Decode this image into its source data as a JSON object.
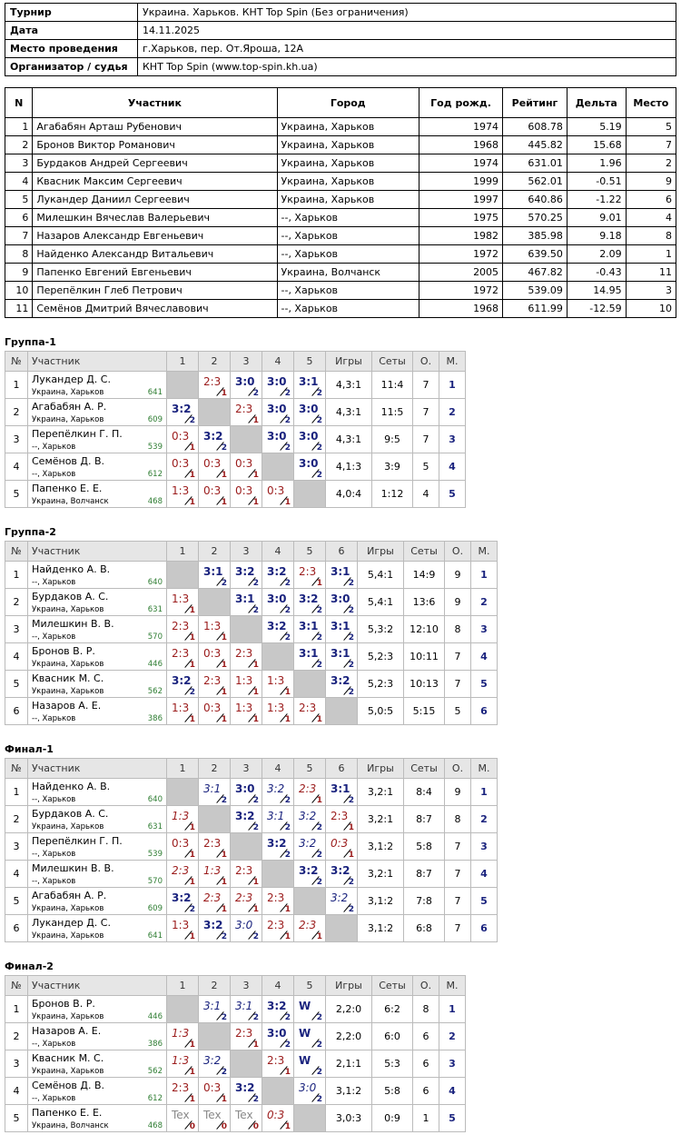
{
  "info": {
    "rows": [
      {
        "label": "Турнир",
        "value": "Украина. Харьков. КНТ Top Spin (Без ограничения)"
      },
      {
        "label": "Дата",
        "value": "14.11.2025"
      },
      {
        "label": "Место проведения",
        "value": "г.Харьков, пер. От.Яроша, 12А"
      },
      {
        "label": "Организатор / судья",
        "value": "КНТ Top Spin (www.top-spin.kh.ua)"
      }
    ]
  },
  "participants": {
    "headers": [
      "N",
      "Участник",
      "Город",
      "Год рожд.",
      "Рейтинг",
      "Дельта",
      "Место"
    ],
    "rows": [
      [
        "1",
        "Агабабян Арташ Рубенович",
        "Украина, Харьков",
        "1974",
        "608.78",
        "5.19",
        "5"
      ],
      [
        "2",
        "Бронов Виктор Романович",
        "Украина, Харьков",
        "1968",
        "445.82",
        "15.68",
        "7"
      ],
      [
        "3",
        "Бурдаков Андрей Сергеевич",
        "Украина, Харьков",
        "1974",
        "631.01",
        "1.96",
        "2"
      ],
      [
        "4",
        "Квасник Максим Сергеевич",
        "Украина, Харьков",
        "1999",
        "562.01",
        "-0.51",
        "9"
      ],
      [
        "5",
        "Лукандер Даниил Сергеевич",
        "Украина, Харьков",
        "1997",
        "640.86",
        "-1.22",
        "6"
      ],
      [
        "6",
        "Милешкин Вячеслав Валерьевич",
        "--, Харьков",
        "1975",
        "570.25",
        "9.01",
        "4"
      ],
      [
        "7",
        "Назаров Александр Евгеньевич",
        "--, Харьков",
        "1982",
        "385.98",
        "9.18",
        "8"
      ],
      [
        "8",
        "Найденко Александр Витальевич",
        "--, Харьков",
        "1972",
        "639.50",
        "2.09",
        "1"
      ],
      [
        "9",
        "Папенко Евгений Евгеньевич",
        "Украина, Волчанск",
        "2005",
        "467.82",
        "-0.43",
        "11"
      ],
      [
        "10",
        "Перепёлкин Глеб Петрович",
        "--, Харьков",
        "1972",
        "539.09",
        "14.95",
        "3"
      ],
      [
        "11",
        "Семёнов Дмитрий Вячеславович",
        "--, Харьков",
        "1968",
        "611.99",
        "-12.59",
        "10"
      ]
    ]
  },
  "groups": [
    {
      "title": "Группа-1",
      "headers": [
        "№",
        "Участник",
        "1",
        "2",
        "3",
        "4",
        "5",
        "Игры",
        "Сеты",
        "О.",
        "М."
      ],
      "rows": [
        {
          "n": "1",
          "name": "Лукандер Д. С.",
          "city": "Украина, Харьков",
          "rating": "641",
          "results": [
            null,
            {
              "score": "2:3",
              "pts": 1
            },
            {
              "score": "3:0",
              "pts": 2
            },
            {
              "score": "3:0",
              "pts": 2
            },
            {
              "score": "3:1",
              "pts": 2
            }
          ],
          "games": "4,3:1",
          "sets": "11:4",
          "points": "7",
          "place": "1"
        },
        {
          "n": "2",
          "name": "Агабабян А. Р.",
          "city": "Украина, Харьков",
          "rating": "609",
          "results": [
            {
              "score": "3:2",
              "pts": 2
            },
            null,
            {
              "score": "2:3",
              "pts": 1
            },
            {
              "score": "3:0",
              "pts": 2
            },
            {
              "score": "3:0",
              "pts": 2
            }
          ],
          "games": "4,3:1",
          "sets": "11:5",
          "points": "7",
          "place": "2"
        },
        {
          "n": "3",
          "name": "Перепёлкин Г. П.",
          "city": "--, Харьков",
          "rating": "539",
          "results": [
            {
              "score": "0:3",
              "pts": 1
            },
            {
              "score": "3:2",
              "pts": 2
            },
            null,
            {
              "score": "3:0",
              "pts": 2
            },
            {
              "score": "3:0",
              "pts": 2
            }
          ],
          "games": "4,3:1",
          "sets": "9:5",
          "points": "7",
          "place": "3"
        },
        {
          "n": "4",
          "name": "Семёнов Д. В.",
          "city": "--, Харьков",
          "rating": "612",
          "results": [
            {
              "score": "0:3",
              "pts": 1
            },
            {
              "score": "0:3",
              "pts": 1
            },
            {
              "score": "0:3",
              "pts": 1
            },
            null,
            {
              "score": "3:0",
              "pts": 2
            }
          ],
          "games": "4,1:3",
          "sets": "3:9",
          "points": "5",
          "place": "4"
        },
        {
          "n": "5",
          "name": "Папенко Е. Е.",
          "city": "Украина, Волчанск",
          "rating": "468",
          "results": [
            {
              "score": "1:3",
              "pts": 1
            },
            {
              "score": "0:3",
              "pts": 1
            },
            {
              "score": "0:3",
              "pts": 1
            },
            {
              "score": "0:3",
              "pts": 1
            },
            null
          ],
          "games": "4,0:4",
          "sets": "1:12",
          "points": "4",
          "place": "5"
        }
      ]
    },
    {
      "title": "Группа-2",
      "headers": [
        "№",
        "Участник",
        "1",
        "2",
        "3",
        "4",
        "5",
        "6",
        "Игры",
        "Сеты",
        "О.",
        "М."
      ],
      "rows": [
        {
          "n": "1",
          "name": "Найденко А. В.",
          "city": "--, Харьков",
          "rating": "640",
          "results": [
            null,
            {
              "score": "3:1",
              "pts": 2
            },
            {
              "score": "3:2",
              "pts": 2
            },
            {
              "score": "3:2",
              "pts": 2
            },
            {
              "score": "2:3",
              "pts": 1
            },
            {
              "score": "3:1",
              "pts": 2
            }
          ],
          "games": "5,4:1",
          "sets": "14:9",
          "points": "9",
          "place": "1"
        },
        {
          "n": "2",
          "name": "Бурдаков А. С.",
          "city": "Украина, Харьков",
          "rating": "631",
          "results": [
            {
              "score": "1:3",
              "pts": 1
            },
            null,
            {
              "score": "3:1",
              "pts": 2
            },
            {
              "score": "3:0",
              "pts": 2
            },
            {
              "score": "3:2",
              "pts": 2
            },
            {
              "score": "3:0",
              "pts": 2
            }
          ],
          "games": "5,4:1",
          "sets": "13:6",
          "points": "9",
          "place": "2"
        },
        {
          "n": "3",
          "name": "Милешкин В. В.",
          "city": "--, Харьков",
          "rating": "570",
          "results": [
            {
              "score": "2:3",
              "pts": 1
            },
            {
              "score": "1:3",
              "pts": 1
            },
            null,
            {
              "score": "3:2",
              "pts": 2
            },
            {
              "score": "3:1",
              "pts": 2
            },
            {
              "score": "3:1",
              "pts": 2
            }
          ],
          "games": "5,3:2",
          "sets": "12:10",
          "points": "8",
          "place": "3"
        },
        {
          "n": "4",
          "name": "Бронов В. Р.",
          "city": "Украина, Харьков",
          "rating": "446",
          "results": [
            {
              "score": "2:3",
              "pts": 1
            },
            {
              "score": "0:3",
              "pts": 1
            },
            {
              "score": "2:3",
              "pts": 1
            },
            null,
            {
              "score": "3:1",
              "pts": 2
            },
            {
              "score": "3:1",
              "pts": 2
            }
          ],
          "games": "5,2:3",
          "sets": "10:11",
          "points": "7",
          "place": "4"
        },
        {
          "n": "5",
          "name": "Квасник М. С.",
          "city": "Украина, Харьков",
          "rating": "562",
          "results": [
            {
              "score": "3:2",
              "pts": 2
            },
            {
              "score": "2:3",
              "pts": 1
            },
            {
              "score": "1:3",
              "pts": 1
            },
            {
              "score": "1:3",
              "pts": 1
            },
            null,
            {
              "score": "3:2",
              "pts": 2
            }
          ],
          "games": "5,2:3",
          "sets": "10:13",
          "points": "7",
          "place": "5"
        },
        {
          "n": "6",
          "name": "Назаров А. Е.",
          "city": "--, Харьков",
          "rating": "386",
          "results": [
            {
              "score": "1:3",
              "pts": 1
            },
            {
              "score": "0:3",
              "pts": 1
            },
            {
              "score": "1:3",
              "pts": 1
            },
            {
              "score": "1:3",
              "pts": 1
            },
            {
              "score": "2:3",
              "pts": 1
            },
            null
          ],
          "games": "5,0:5",
          "sets": "5:15",
          "points": "5",
          "place": "6"
        }
      ]
    },
    {
      "title": "Финал-1",
      "headers": [
        "№",
        "Участник",
        "1",
        "2",
        "3",
        "4",
        "5",
        "6",
        "Игры",
        "Сеты",
        "О.",
        "М."
      ],
      "rows": [
        {
          "n": "1",
          "name": "Найденко А. В.",
          "city": "--, Харьков",
          "rating": "640",
          "results": [
            null,
            {
              "score": "3:1",
              "pts": 2,
              "italic": true
            },
            {
              "score": "3:0",
              "pts": 2
            },
            {
              "score": "3:2",
              "pts": 2,
              "italic": true
            },
            {
              "score": "2:3",
              "pts": 1,
              "italic": true
            },
            {
              "score": "3:1",
              "pts": 2
            }
          ],
          "games": "3,2:1",
          "sets": "8:4",
          "points": "9",
          "place": "1"
        },
        {
          "n": "2",
          "name": "Бурдаков А. С.",
          "city": "Украина, Харьков",
          "rating": "631",
          "results": [
            {
              "score": "1:3",
              "pts": 1,
              "italic": true
            },
            null,
            {
              "score": "3:2",
              "pts": 2
            },
            {
              "score": "3:1",
              "pts": 2,
              "italic": true
            },
            {
              "score": "3:2",
              "pts": 2,
              "italic": true
            },
            {
              "score": "2:3",
              "pts": 1
            }
          ],
          "games": "3,2:1",
          "sets": "8:7",
          "points": "8",
          "place": "2"
        },
        {
          "n": "3",
          "name": "Перепёлкин Г. П.",
          "city": "--, Харьков",
          "rating": "539",
          "results": [
            {
              "score": "0:3",
              "pts": 1
            },
            {
              "score": "2:3",
              "pts": 1
            },
            null,
            {
              "score": "3:2",
              "pts": 2
            },
            {
              "score": "3:2",
              "pts": 2,
              "italic": true
            },
            {
              "score": "0:3",
              "pts": 1,
              "italic": true
            }
          ],
          "games": "3,1:2",
          "sets": "5:8",
          "points": "7",
          "place": "3"
        },
        {
          "n": "4",
          "name": "Милешкин В. В.",
          "city": "--, Харьков",
          "rating": "570",
          "results": [
            {
              "score": "2:3",
              "pts": 1,
              "italic": true
            },
            {
              "score": "1:3",
              "pts": 1,
              "italic": true
            },
            {
              "score": "2:3",
              "pts": 1
            },
            null,
            {
              "score": "3:2",
              "pts": 2
            },
            {
              "score": "3:2",
              "pts": 2
            }
          ],
          "games": "3,2:1",
          "sets": "8:7",
          "points": "7",
          "place": "4"
        },
        {
          "n": "5",
          "name": "Агабабян А. Р.",
          "city": "Украина, Харьков",
          "rating": "609",
          "results": [
            {
              "score": "3:2",
              "pts": 2
            },
            {
              "score": "2:3",
              "pts": 1,
              "italic": true
            },
            {
              "score": "2:3",
              "pts": 1,
              "italic": true
            },
            {
              "score": "2:3",
              "pts": 1
            },
            null,
            {
              "score": "3:2",
              "pts": 2,
              "italic": true
            }
          ],
          "games": "3,1:2",
          "sets": "7:8",
          "points": "7",
          "place": "5"
        },
        {
          "n": "6",
          "name": "Лукандер Д. С.",
          "city": "Украина, Харьков",
          "rating": "641",
          "results": [
            {
              "score": "1:3",
              "pts": 1
            },
            {
              "score": "3:2",
              "pts": 2
            },
            {
              "score": "3:0",
              "pts": 2,
              "italic": true
            },
            {
              "score": "2:3",
              "pts": 1
            },
            {
              "score": "2:3",
              "pts": 1,
              "italic": true
            },
            null
          ],
          "games": "3,1:2",
          "sets": "6:8",
          "points": "7",
          "place": "6"
        }
      ]
    },
    {
      "title": "Финал-2",
      "headers": [
        "№",
        "Участник",
        "1",
        "2",
        "3",
        "4",
        "5",
        "Игры",
        "Сеты",
        "О.",
        "М."
      ],
      "rows": [
        {
          "n": "1",
          "name": "Бронов В. Р.",
          "city": "Украина, Харьков",
          "rating": "446",
          "results": [
            null,
            {
              "score": "3:1",
              "pts": 2,
              "italic": true
            },
            {
              "score": "3:1",
              "pts": 2,
              "italic": true
            },
            {
              "score": "3:2",
              "pts": 2
            },
            {
              "score": "W",
              "pts": 2
            }
          ],
          "games": "2,2:0",
          "sets": "6:2",
          "points": "8",
          "place": "1"
        },
        {
          "n": "2",
          "name": "Назаров А. Е.",
          "city": "--, Харьков",
          "rating": "386",
          "results": [
            {
              "score": "1:3",
              "pts": 1,
              "italic": true
            },
            null,
            {
              "score": "2:3",
              "pts": 1
            },
            {
              "score": "3:0",
              "pts": 2
            },
            {
              "score": "W",
              "pts": 2
            }
          ],
          "games": "2,2:0",
          "sets": "6:0",
          "points": "6",
          "place": "2"
        },
        {
          "n": "3",
          "name": "Квасник М. С.",
          "city": "Украина, Харьков",
          "rating": "562",
          "results": [
            {
              "score": "1:3",
              "pts": 1,
              "italic": true
            },
            {
              "score": "3:2",
              "pts": 2,
              "italic": true
            },
            null,
            {
              "score": "2:3",
              "pts": 1
            },
            {
              "score": "W",
              "pts": 2
            }
          ],
          "games": "2,1:1",
          "sets": "5:3",
          "points": "6",
          "place": "3"
        },
        {
          "n": "4",
          "name": "Семёнов Д. В.",
          "city": "--, Харьков",
          "rating": "612",
          "results": [
            {
              "score": "2:3",
              "pts": 1
            },
            {
              "score": "0:3",
              "pts": 1
            },
            {
              "score": "3:2",
              "pts": 2
            },
            null,
            {
              "score": "3:0",
              "pts": 2,
              "italic": true
            }
          ],
          "games": "3,1:2",
          "sets": "5:8",
          "points": "6",
          "place": "4"
        },
        {
          "n": "5",
          "name": "Папенко Е. Е.",
          "city": "Украина, Волчанск",
          "rating": "468",
          "results": [
            {
              "score": "Tex",
              "pts": 0
            },
            {
              "score": "Tex",
              "pts": 0
            },
            {
              "score": "Tex",
              "pts": 0
            },
            {
              "score": "0:3",
              "pts": 1,
              "italic": true
            },
            null
          ],
          "games": "3,0:3",
          "sets": "0:9",
          "points": "1",
          "place": "5"
        }
      ]
    }
  ]
}
